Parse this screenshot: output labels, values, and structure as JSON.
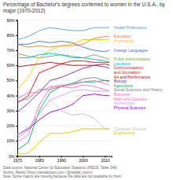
{
  "chart_data": {
    "type": "line",
    "title": "Percentage of Bachelor's degrees conferred to women in the U.S.A., by major (1970-2012)",
    "x": [
      1970,
      1975,
      1980,
      1985,
      1990,
      1995,
      2000,
      2005,
      2010,
      2012
    ],
    "series": [
      {
        "name": "Health Professions",
        "color": "#5B9BD5",
        "values": [
          77,
          79,
          83,
          85,
          84,
          83,
          83,
          85,
          85,
          85
        ]
      },
      {
        "name": "Public Administration",
        "color": "#70AD47",
        "values": [
          68,
          66,
          65,
          66,
          67,
          65,
          65,
          67,
          65,
          64
        ]
      },
      {
        "name": "Education",
        "color": "#ED7D31",
        "values": [
          74,
          72,
          73,
          72,
          73,
          73,
          74,
          78,
          79,
          79
        ]
      },
      {
        "name": "Psychology",
        "color": "#FFC000",
        "values": [
          44,
          52,
          65,
          70,
          73,
          74,
          77,
          77,
          77,
          77
        ]
      },
      {
        "name": "Foreign Languages",
        "color": "#4472C4",
        "values": [
          74,
          74,
          76,
          75,
          76,
          75,
          72,
          70,
          69,
          70
        ]
      },
      {
        "name": "Literature",
        "color": "#00B0F0",
        "values": [
          65,
          65,
          67,
          68,
          67,
          66,
          65,
          64,
          63,
          62
        ]
      },
      {
        "name": "Communications\nand Journalism",
        "color": "#FF0000",
        "values": [
          35,
          40,
          55,
          58,
          61,
          63,
          63,
          62,
          62,
          62
        ]
      },
      {
        "name": "Art and Performance",
        "color": "#C00000",
        "values": [
          59,
          60,
          61,
          62,
          61,
          60,
          60,
          60,
          61,
          60
        ]
      },
      {
        "name": "Biology",
        "color": "#7030A0",
        "values": [
          29,
          35,
          42,
          50,
          52,
          55,
          58,
          60,
          59,
          58
        ]
      },
      {
        "name": "Agriculture",
        "color": "#00B050",
        "values": [
          4,
          9,
          30,
          42,
          46,
          48,
          49,
          49,
          50,
          50
        ]
      },
      {
        "name": "Social Sciences and History",
        "color": "#808080",
        "values": [
          36,
          38,
          44,
          44,
          46,
          48,
          51,
          52,
          50,
          49
        ]
      },
      {
        "name": "Business",
        "color": "#FF66CC",
        "values": [
          9,
          14,
          34,
          45,
          47,
          47,
          49,
          50,
          48,
          47
        ]
      },
      {
        "name": "Math and Statistics",
        "color": "#FF69B4",
        "values": [
          38,
          42,
          42,
          46,
          46,
          45,
          47,
          46,
          44,
          43
        ]
      },
      {
        "name": "Architecture",
        "color": "#CC99FF",
        "values": [
          12,
          17,
          28,
          37,
          40,
          43,
          44,
          43,
          43,
          43
        ]
      },
      {
        "name": "Physical Sciences",
        "color": "#9900CC",
        "values": [
          14,
          18,
          24,
          29,
          31,
          34,
          40,
          41,
          40,
          40
        ]
      },
      {
        "name": "Computer Science",
        "color": "#C0C0C0",
        "values": [
          14,
          19,
          28,
          37,
          30,
          27,
          28,
          25,
          18,
          18
        ]
      },
      {
        "name": "Engineering",
        "color": "#CCCC00",
        "values": [
          1,
          2,
          9,
          15,
          15,
          16,
          18,
          18,
          18,
          18
        ]
      }
    ],
    "annotations": [
      "Data source: National Center for Education Statistics (IPEDS, Table 349)",
      "Author: Randy Olson (randalolson.com / @randal_olson)",
      "Note: Some majors are missing because the data are not available for them."
    ],
    "xlim": [
      1970,
      2013
    ],
    "xticks": [
      1970,
      1980,
      1990,
      2000,
      2010
    ],
    "ylim": [
      0,
      90
    ],
    "yticks": [
      {
        "value": 0,
        "label": "0%"
      },
      {
        "value": 10,
        "label": "10%"
      },
      {
        "value": 20,
        "label": "20%"
      },
      {
        "value": 30,
        "label": "30%"
      },
      {
        "value": 40,
        "label": "40%"
      },
      {
        "value": 50,
        "label": "50%"
      },
      {
        "value": 60,
        "label": "60%"
      },
      {
        "value": 70,
        "label": "70%"
      },
      {
        "value": 80,
        "label": "80%"
      },
      {
        "value": 90,
        "label": "90%"
      }
    ],
    "grid": true
  }
}
